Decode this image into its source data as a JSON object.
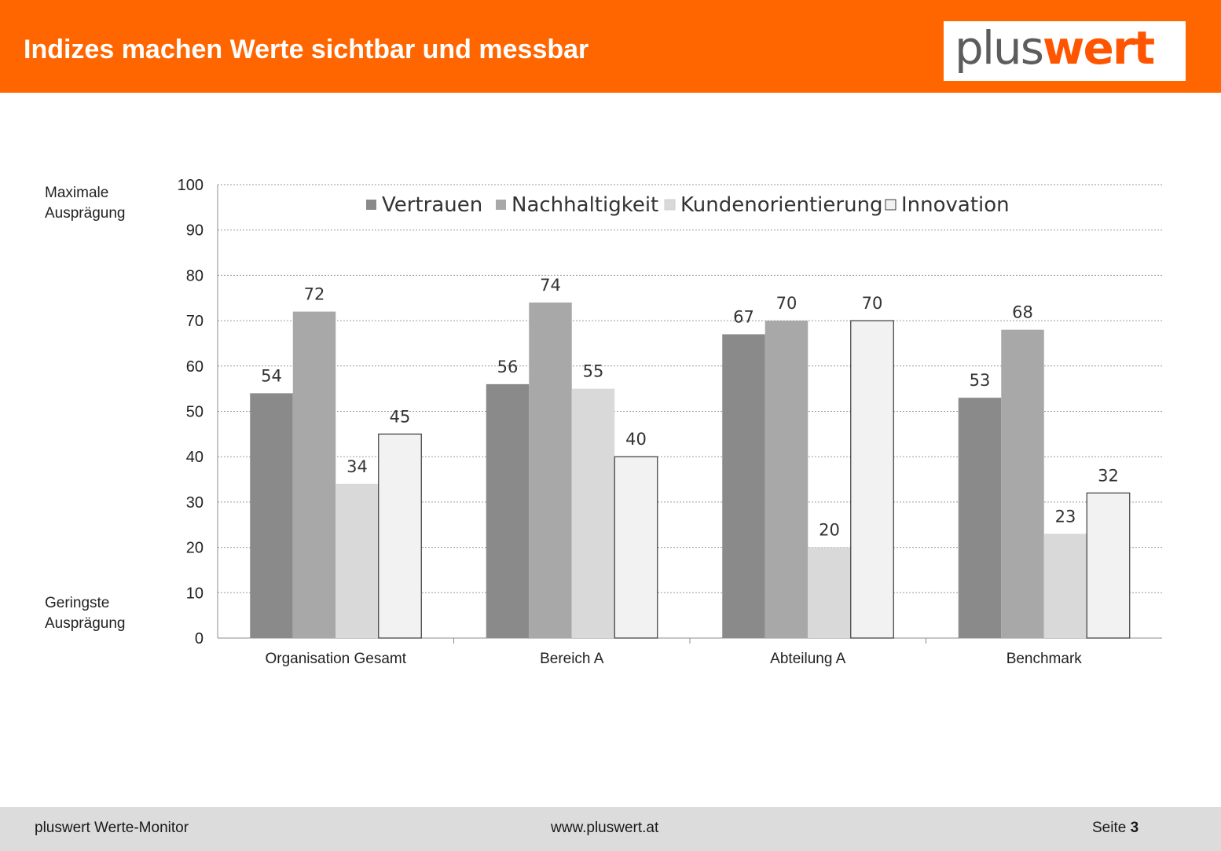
{
  "header": {
    "title": "Indizes machen Werte sichtbar und messbar",
    "logo_part1": "plus",
    "logo_part2": "wert"
  },
  "side_labels": {
    "top_line1": "Maximale",
    "top_line2": "Ausprägung",
    "bottom_line1": "Geringste",
    "bottom_line2": "Ausprägung"
  },
  "chart_data": {
    "type": "bar",
    "categories": [
      "Organisation Gesamt",
      "Bereich A",
      "Abteilung A",
      "Benchmark"
    ],
    "series": [
      {
        "name": "Vertrauen",
        "values": [
          54,
          56,
          67,
          53
        ],
        "color": "#8a8a8a"
      },
      {
        "name": "Nachhaltigkeit",
        "values": [
          72,
          74,
          70,
          68
        ],
        "color": "#a8a8a8"
      },
      {
        "name": "Kundenorientierung",
        "values": [
          34,
          55,
          20,
          23
        ],
        "color": "#d9d9d9"
      },
      {
        "name": "Innovation",
        "values": [
          45,
          40,
          70,
          32
        ],
        "color": "#f2f2f2"
      }
    ],
    "ylim": [
      0,
      100
    ],
    "yticks": [
      0,
      10,
      20,
      30,
      40,
      50,
      60,
      70,
      80,
      90,
      100
    ],
    "grid": true,
    "legend": "top",
    "data_labels": true
  },
  "footer": {
    "left": "pluswert Werte-Monitor",
    "center": "www.pluswert.at",
    "right_label": "Seite",
    "right_page": "3"
  }
}
